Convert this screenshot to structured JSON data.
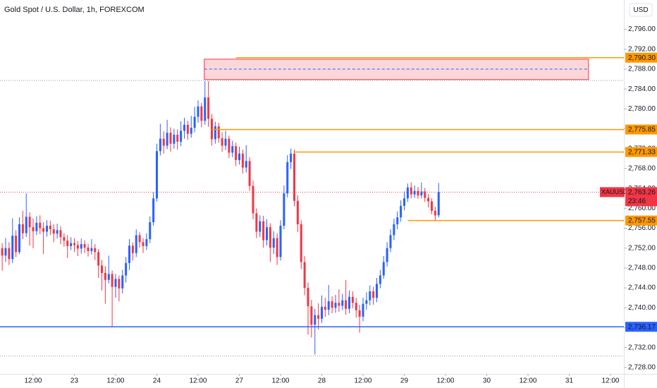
{
  "chart_data": {
    "type": "candlestick",
    "title": "Gold Spot / U.S. Dollar, 1h, FOREXCOM",
    "currency": "USD",
    "up_color": "#2962ff",
    "down_color": "#f23645",
    "open": [
      2752.0,
      2750.5,
      2752.0,
      2749.8,
      2754.5,
      2751.2,
      2756.8,
      2755.0,
      2758.3,
      2756.2,
      2755.4,
      2757.1,
      2756.0,
      2755.3,
      2756.5,
      2755.8,
      2754.9,
      2755.6,
      2754.2,
      2753.5,
      2752.4,
      2753.0,
      2752.6,
      2751.9,
      2752.8,
      2752.1,
      2751.4,
      2752.0,
      2751.2,
      2748.5,
      2747.0,
      2745.6,
      2746.8,
      2744.2,
      2745.8,
      2743.9,
      2746.5,
      2749.0,
      2752.5,
      2751.0,
      2754.6,
      2753.2,
      2752.4,
      2753.8,
      2757.2,
      2762.0,
      2771.5,
      2774.0,
      2772.6,
      2775.2,
      2773.0,
      2774.8,
      2773.4,
      2775.6,
      2776.8,
      2775.0,
      2776.2,
      2778.4,
      2780.5,
      2777.6,
      2782.3,
      2778.0,
      2773.9,
      2776.5,
      2774.1,
      2772.6,
      2774.0,
      2771.2,
      2772.5,
      2769.7,
      2771.0,
      2768.2,
      2769.5,
      2764.5,
      2759.0,
      2755.3,
      2757.4,
      2753.6,
      2756.2,
      2752.1,
      2754.0,
      2750.2,
      2756.5,
      2763.0,
      2769.3,
      2771.0,
      2761.5,
      2756.8,
      2749.2,
      2744.0,
      2740.3,
      2736.6,
      2738.5,
      2737.8,
      2740.2,
      2739.6,
      2741.3,
      2740.0,
      2741.0,
      2740.4,
      2741.5,
      2739.8,
      2742.2,
      2741.0,
      2739.5,
      2738.2,
      2740.8,
      2741.5,
      2743.3,
      2742.0,
      2744.8,
      2746.5,
      2749.2,
      2752.0,
      2754.6,
      2756.8,
      2758.2,
      2760.5,
      2762.0,
      2764.2,
      2762.8,
      2763.5,
      2762.6,
      2763.4,
      2762.1,
      2761.4,
      2759.5,
      2758.6
    ],
    "high": [
      2753.0,
      2754.0,
      2753.2,
      2758.0,
      2755.6,
      2758.2,
      2759.5,
      2763.0,
      2759.2,
      2758.0,
      2758.4,
      2758.6,
      2757.2,
      2757.6,
      2757.5,
      2756.8,
      2756.9,
      2756.4,
      2755.0,
      2754.6,
      2754.2,
      2754.0,
      2753.4,
      2753.9,
      2753.6,
      2752.9,
      2753.8,
      2752.8,
      2751.8,
      2749.6,
      2748.4,
      2750.5,
      2747.5,
      2746.8,
      2746.5,
      2747.6,
      2750.2,
      2753.8,
      2753.2,
      2755.8,
      2755.2,
      2754.0,
      2755.0,
      2758.4,
      2763.2,
      2773.0,
      2777.0,
      2775.5,
      2777.8,
      2776.3,
      2776.0,
      2775.9,
      2777.5,
      2778.2,
      2777.6,
      2778.6,
      2780.4,
      2781.7,
      2781.2,
      2785.6,
      2785.6,
      2779.0,
      2777.4,
      2777.2,
      2775.3,
      2775.6,
      2774.6,
      2773.6,
      2773.2,
      2772.4,
      2771.8,
      2772.7,
      2770.3,
      2765.6,
      2760.0,
      2758.6,
      2758.5,
      2757.8,
      2757.0,
      2755.4,
      2755.0,
      2757.6,
      2764.6,
      2770.7,
      2772.0,
      2771.8,
      2762.6,
      2757.6,
      2750.4,
      2745.1,
      2741.6,
      2739.8,
      2740.9,
      2742.5,
      2742.0,
      2744.6,
      2742.3,
      2742.6,
      2743.7,
      2742.8,
      2745.6,
      2743.5,
      2743.3,
      2742.0,
      2740.6,
      2742.0,
      2743.1,
      2744.5,
      2744.2,
      2746.0,
      2747.6,
      2750.4,
      2753.2,
      2755.8,
      2757.9,
      2759.4,
      2761.6,
      2763.4,
      2765.0,
      2765.2,
      2764.6,
      2764.3,
      2765.2,
      2764.1,
      2762.9,
      2762.0,
      2760.3,
      2765.1
    ],
    "low": [
      2747.5,
      2749.2,
      2748.6,
      2749.0,
      2750.2,
      2750.8,
      2753.8,
      2754.2,
      2752.5,
      2752.0,
      2754.6,
      2754.8,
      2750.8,
      2754.3,
      2754.6,
      2753.2,
      2753.9,
      2752.8,
      2752.3,
      2750.0,
      2751.6,
      2751.2,
      2750.4,
      2750.9,
      2751.0,
      2750.3,
      2750.7,
      2749.6,
      2746.0,
      2743.5,
      2740.8,
      2744.9,
      2736.2,
      2742.0,
      2741.3,
      2742.9,
      2745.1,
      2747.6,
      2749.5,
      2750.2,
      2752.1,
      2751.0,
      2751.6,
      2753.0,
      2756.5,
      2761.4,
      2770.6,
      2771.0,
      2771.9,
      2771.4,
      2772.0,
      2771.8,
      2772.5,
      2774.0,
      2773.8,
      2774.2,
      2775.3,
      2777.2,
      2776.3,
      2776.8,
      2776.4,
      2772.6,
      2773.0,
      2773.2,
      2771.4,
      2771.7,
      2770.1,
      2770.3,
      2768.5,
      2768.8,
      2767.0,
      2767.2,
      2763.5,
      2757.8,
      2754.0,
      2754.2,
      2752.1,
      2752.5,
      2749.2,
      2750.8,
      2748.6,
      2749.5,
      2755.8,
      2762.2,
      2767.9,
      2760.4,
      2755.2,
      2747.8,
      2742.5,
      2734.6,
      2734.0,
      2730.6,
      2735.6,
      2736.9,
      2738.2,
      2738.5,
      2738.9,
      2739.0,
      2739.2,
      2739.5,
      2738.6,
      2738.9,
      2739.9,
      2738.0,
      2735.0,
      2737.3,
      2739.6,
      2740.5,
      2740.6,
      2741.1,
      2743.9,
      2745.8,
      2748.3,
      2751.2,
      2753.6,
      2755.8,
      2757.3,
      2759.6,
      2761.3,
      2762.0,
      2762.1,
      2761.9,
      2762.0,
      2761.3,
      2760.2,
      2758.8,
      2757.4,
      2758.2
    ],
    "close": [
      2750.5,
      2752.0,
      2749.8,
      2754.5,
      2751.2,
      2756.8,
      2755.0,
      2758.3,
      2756.2,
      2755.4,
      2757.1,
      2756.0,
      2755.3,
      2756.5,
      2755.8,
      2754.9,
      2755.6,
      2754.2,
      2753.5,
      2752.4,
      2753.0,
      2752.6,
      2751.9,
      2752.8,
      2752.1,
      2751.4,
      2752.0,
      2751.2,
      2748.5,
      2747.0,
      2745.6,
      2746.8,
      2744.2,
      2745.8,
      2743.9,
      2746.5,
      2749.0,
      2752.5,
      2751.0,
      2754.6,
      2753.2,
      2752.4,
      2753.8,
      2757.2,
      2762.0,
      2771.5,
      2774.0,
      2772.6,
      2775.2,
      2773.0,
      2774.8,
      2773.4,
      2775.6,
      2776.8,
      2775.0,
      2776.2,
      2778.4,
      2780.5,
      2777.6,
      2782.3,
      2778.0,
      2773.9,
      2776.5,
      2774.1,
      2772.6,
      2774.0,
      2771.2,
      2772.5,
      2769.7,
      2771.0,
      2768.2,
      2769.5,
      2764.5,
      2759.0,
      2755.3,
      2757.4,
      2753.6,
      2756.2,
      2752.1,
      2754.0,
      2750.2,
      2756.5,
      2763.0,
      2769.3,
      2771.0,
      2761.5,
      2756.8,
      2749.2,
      2744.0,
      2740.3,
      2736.6,
      2738.5,
      2737.8,
      2740.2,
      2739.6,
      2741.3,
      2740.0,
      2741.0,
      2740.4,
      2741.5,
      2739.8,
      2742.2,
      2741.0,
      2739.5,
      2738.2,
      2740.8,
      2741.5,
      2743.3,
      2742.0,
      2744.8,
      2746.5,
      2749.2,
      2752.0,
      2754.6,
      2756.8,
      2758.2,
      2760.5,
      2762.0,
      2764.2,
      2762.8,
      2763.5,
      2762.6,
      2763.4,
      2762.1,
      2761.4,
      2759.5,
      2758.6,
      2763.26
    ],
    "xlim": [
      -0.64,
      180.9
    ],
    "xticks": [
      {
        "value": 9,
        "label": "12:00"
      },
      {
        "value": 21,
        "label": "23"
      },
      {
        "value": 33,
        "label": "12:00"
      },
      {
        "value": 45,
        "label": "24"
      },
      {
        "value": 57,
        "label": "12:00"
      },
      {
        "value": 69,
        "label": "27"
      },
      {
        "value": 81,
        "label": "12:00"
      },
      {
        "value": 93,
        "label": "28"
      },
      {
        "value": 105,
        "label": "12:00"
      },
      {
        "value": 117,
        "label": "29"
      },
      {
        "value": 129,
        "label": "12:00"
      },
      {
        "value": 141,
        "label": "30"
      },
      {
        "value": 153,
        "label": "12:00"
      },
      {
        "value": 165,
        "label": "31"
      },
      {
        "value": 177,
        "label": "12:00"
      }
    ],
    "ylim": [
      2726.7,
      2801.9
    ],
    "yticks": [
      {
        "value": 2728,
        "label": "2,728.00"
      },
      {
        "value": 2732,
        "label": "2,732.00"
      },
      {
        "value": 2736,
        "label": "2,736.00"
      },
      {
        "value": 2740,
        "label": "2,740.00"
      },
      {
        "value": 2744,
        "label": "2,744.00"
      },
      {
        "value": 2748,
        "label": "2,748.00"
      },
      {
        "value": 2752,
        "label": "2,752.00"
      },
      {
        "value": 2756,
        "label": "2,756.00"
      },
      {
        "value": 2760,
        "label": "2,760.00"
      },
      {
        "value": 2764,
        "label": "2,764.00"
      },
      {
        "value": 2768,
        "label": "2,768.00"
      },
      {
        "value": 2772,
        "label": "2,772.00"
      },
      {
        "value": 2776,
        "label": "2,776.00"
      },
      {
        "value": 2780,
        "label": "2,780.00"
      },
      {
        "value": 2784,
        "label": "2,784.00"
      },
      {
        "value": 2788,
        "label": "2,788.00"
      },
      {
        "value": 2792,
        "label": "2,792.00"
      },
      {
        "value": 2796,
        "label": "2,796.00"
      }
    ],
    "dotted_levels": [
      2785.7,
      2730.3
    ],
    "zone": {
      "top": 2790.0,
      "bottom": 2785.9,
      "mid": 2788.0,
      "from": 58.8,
      "to": 170.6,
      "color": "#f23645"
    },
    "price_lines": [
      {
        "value": 2790.3,
        "label": "2,790.30",
        "color": "#ff9800",
        "from": 68
      },
      {
        "value": 2775.85,
        "label": "2,775.85",
        "color": "#ff9800",
        "from": 61
      },
      {
        "value": 2771.33,
        "label": "2,771.33",
        "color": "#ff9800",
        "from": 85
      },
      {
        "value": 2757.55,
        "label": "2,757.55",
        "color": "#ff9800",
        "from": 118
      },
      {
        "value": 2736.17,
        "label": "2,736.17",
        "color": "#2962ff",
        "from": -0.64
      }
    ],
    "last_price": {
      "value": 2763.26,
      "label": "2,763.26",
      "symbol": "XAUUSD",
      "countdown": "23:46",
      "color": "#f23645"
    }
  }
}
